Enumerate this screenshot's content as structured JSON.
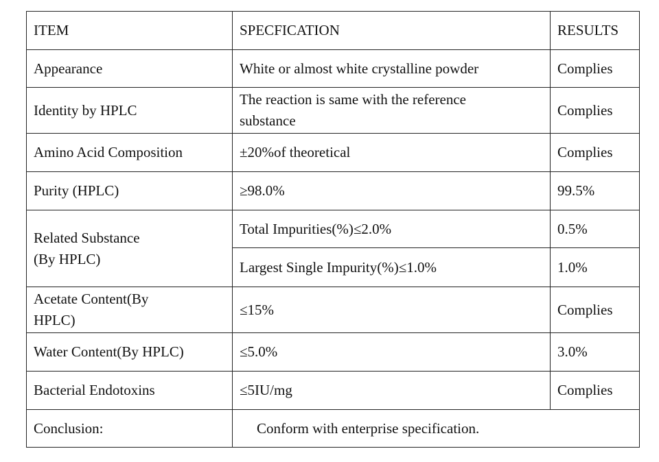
{
  "table": {
    "rows": [
      [
        [
          "ITEM"
        ],
        [
          "SPECFICATION"
        ],
        [
          "RESULTS"
        ]
      ],
      [
        [
          "Appearance"
        ],
        [
          "White or almost white crystalline powder"
        ],
        [
          "Complies"
        ]
      ],
      [
        [
          "Identity by HPLC"
        ],
        [
          "The reaction is same with the reference",
          "substance"
        ],
        [
          "Complies"
        ]
      ],
      [
        [
          "Amino Acid Composition"
        ],
        [
          "±20%of theoretical"
        ],
        [
          "Complies"
        ]
      ],
      [
        [
          "Purity (HPLC)"
        ],
        [
          "≥98.0%"
        ],
        [
          "99.5%"
        ]
      ],
      [
        [
          "Related Substance",
          "(By HPLC)"
        ],
        [
          "Total Impurities(%)≤2.0%"
        ],
        [
          "0.5%"
        ]
      ],
      [
        [
          "Largest Single Impurity(%)≤1.0%"
        ],
        [
          "1.0%"
        ]
      ],
      [
        [
          "Acetate Content(By",
          "HPLC)"
        ],
        [
          "≤15%"
        ],
        [
          "Complies"
        ]
      ],
      [
        [
          "Water Content(By HPLC)"
        ],
        [
          "≤5.0%"
        ],
        [
          "3.0%"
        ]
      ],
      [
        [
          "Bacterial Endotoxins"
        ],
        [
          "≤5IU/mg"
        ],
        [
          "Complies"
        ]
      ],
      [
        [
          "Conclusion:"
        ],
        [
          "Conform with enterprise specification."
        ]
      ]
    ]
  }
}
